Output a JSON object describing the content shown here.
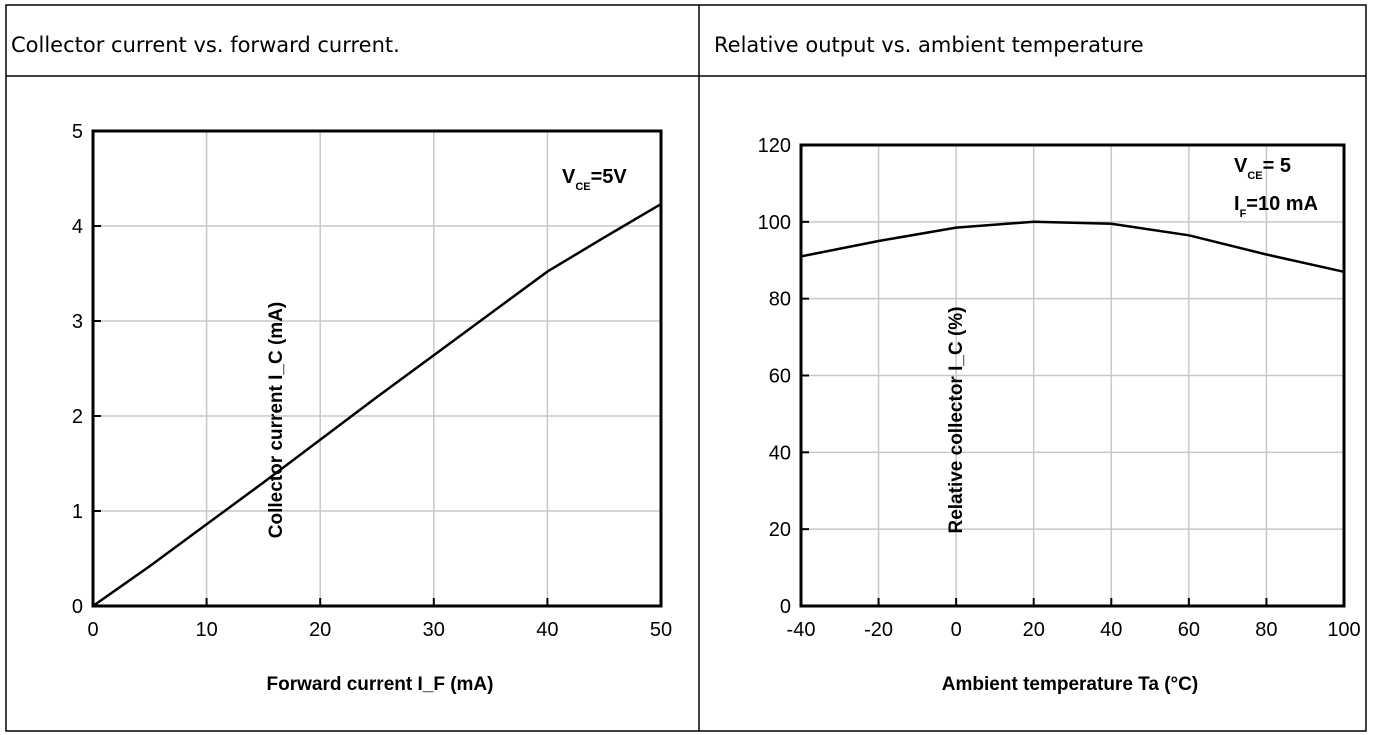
{
  "panels": [
    {
      "header": "Collector current vs. forward current."
    },
    {
      "header": "Relative output vs. ambient temperature"
    }
  ],
  "chart_data": [
    {
      "type": "line",
      "title": "Collector current vs. forward current.",
      "xlabel": "Forward current I_F (mA)",
      "ylabel": "Collector current I_C (mA)",
      "xlim": [
        0,
        50
      ],
      "ylim": [
        0,
        5
      ],
      "x_ticks": [
        "0",
        "10",
        "20",
        "30",
        "40",
        "50"
      ],
      "y_ticks": [
        "0",
        "1",
        "2",
        "3",
        "4",
        "5"
      ],
      "annotation": {
        "main": "V",
        "sub": "CE",
        "tail": "=5V"
      },
      "grid": true,
      "series": [
        {
          "x": [
            0,
            5,
            10,
            15,
            20,
            25,
            30,
            35,
            40,
            45,
            50
          ],
          "y": [
            0,
            0.42,
            0.86,
            1.3,
            1.75,
            2.2,
            2.64,
            3.08,
            3.52,
            3.88,
            4.23
          ]
        }
      ]
    },
    {
      "type": "line",
      "title": "Relative output vs. ambient temperature",
      "xlabel": "Ambient temperature Ta (°C)",
      "ylabel": "Relative collector I_C (%)",
      "xlim": [
        -40,
        100
      ],
      "ylim": [
        0,
        120
      ],
      "x_ticks": [
        "-40",
        "-20",
        "0",
        "20",
        "40",
        "60",
        "80",
        "100"
      ],
      "y_ticks": [
        "0",
        "20",
        "40",
        "60",
        "80",
        "100",
        "120"
      ],
      "annotation": {
        "line1_main": "V",
        "line1_sub": "CE",
        "line1_tail": "= 5",
        "line2_main": "I",
        "line2_sub": "F",
        "line2_tail": "=10 mA"
      },
      "grid": true,
      "series": [
        {
          "x": [
            -40,
            -20,
            0,
            20,
            40,
            60,
            80,
            100
          ],
          "y": [
            91,
            95,
            98.5,
            100,
            99.5,
            96.5,
            91.5,
            87
          ]
        }
      ]
    }
  ]
}
